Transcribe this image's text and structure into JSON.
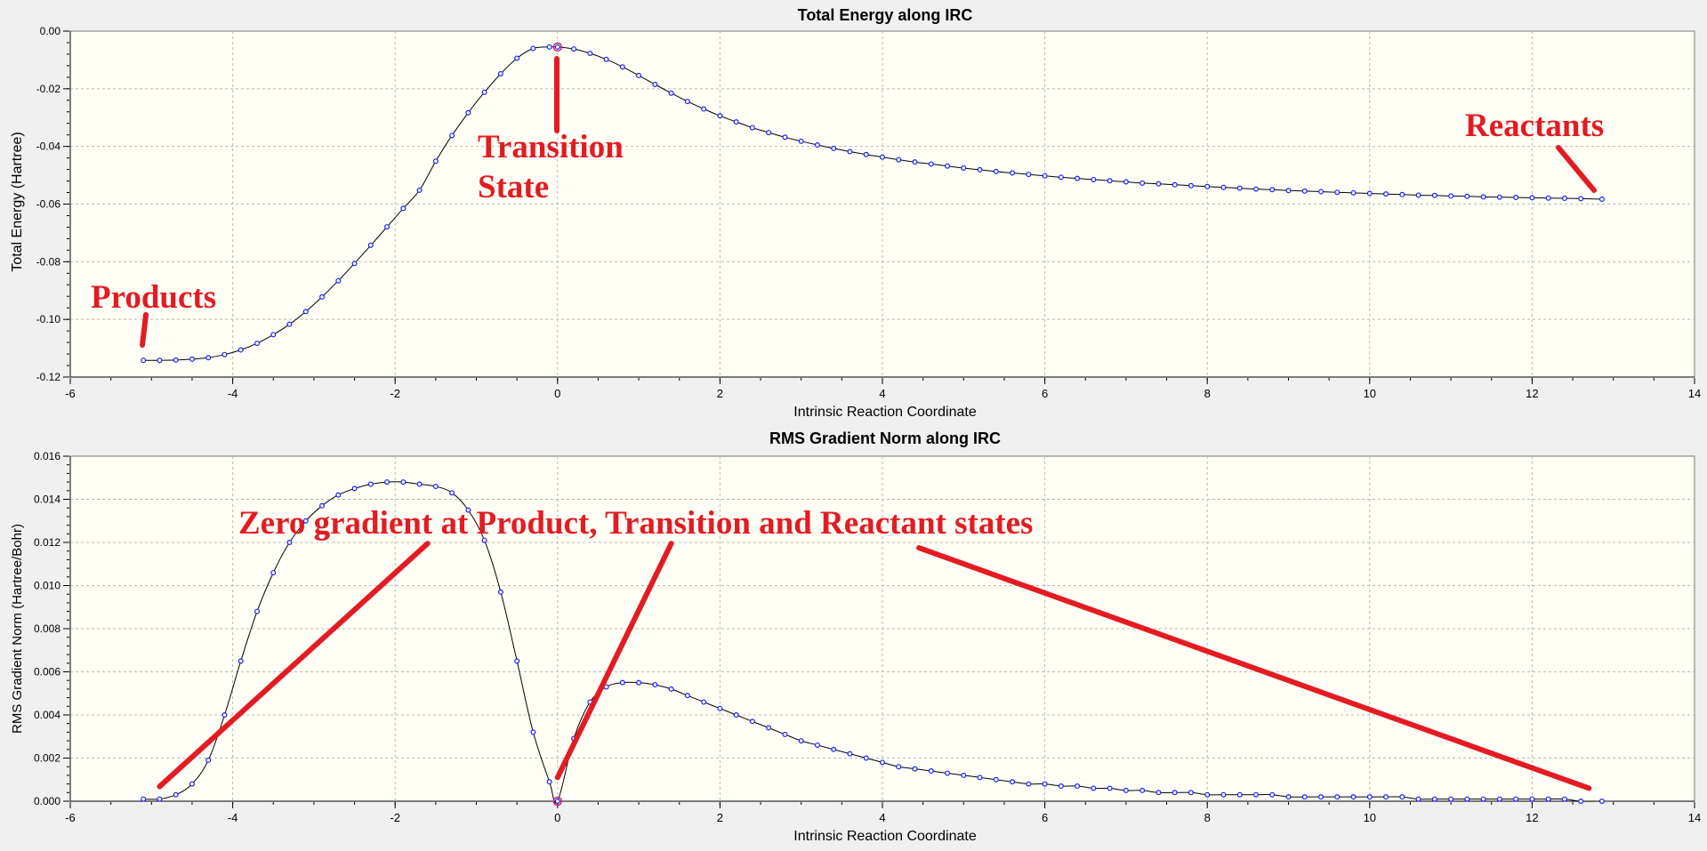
{
  "colors": {
    "plot_bg": "#fffff6",
    "outer_bg": "#f0f0f0",
    "grid": "#b8b8b8",
    "line": "#000000",
    "marker": "#1a1aff",
    "highlight": "#cc2277",
    "annotation": "#e31b23"
  },
  "chart_data": [
    {
      "type": "line",
      "title": "Total Energy along IRC",
      "xlabel": "Intrinsic Reaction Coordinate",
      "ylabel": "Total Energy (Hartree)",
      "xlim": [
        -6,
        14
      ],
      "ylim": [
        -0.12,
        0.0
      ],
      "xticks": [
        "-6",
        "-4",
        "-2",
        "0",
        "2",
        "4",
        "6",
        "8",
        "10",
        "12",
        "14"
      ],
      "yticks": [
        "0.00",
        "-0.02",
        "-0.04",
        "-0.06",
        "-0.08",
        "-0.10",
        "-0.12"
      ],
      "grid": true,
      "series": [
        {
          "x": [
            -5.1,
            -4.9,
            -4.7,
            -4.5,
            -4.3,
            -4.1,
            -3.9,
            -3.7,
            -3.5,
            -3.3,
            -3.1,
            -2.9,
            -2.7,
            -2.5,
            -2.3,
            -2.1,
            -1.9,
            -1.7,
            -1.5,
            -1.3,
            -1.1,
            -0.9,
            -0.7,
            -0.5,
            -0.3,
            -0.1,
            0.0,
            0.2,
            0.4,
            0.6,
            0.8,
            1.0,
            1.2,
            1.4,
            1.6,
            1.8,
            2.0,
            2.2,
            2.4,
            2.6,
            2.8,
            3.0,
            3.2,
            3.4,
            3.6,
            3.8,
            4.0,
            4.2,
            4.4,
            4.6,
            4.8,
            5.0,
            5.2,
            5.4,
            5.6,
            5.8,
            6.0,
            6.2,
            6.4,
            6.6,
            6.8,
            7.0,
            7.2,
            7.4,
            7.6,
            7.8,
            8.0,
            8.2,
            8.4,
            8.6,
            8.8,
            9.0,
            9.2,
            9.4,
            9.6,
            9.8,
            10.0,
            10.2,
            10.4,
            10.6,
            10.8,
            11.0,
            11.2,
            11.4,
            11.6,
            11.8,
            12.0,
            12.2,
            12.4,
            12.6,
            12.86
          ],
          "y": [
            -0.1142,
            -0.1142,
            -0.1141,
            -0.1138,
            -0.1133,
            -0.1122,
            -0.1106,
            -0.1083,
            -0.1053,
            -0.1017,
            -0.0973,
            -0.0922,
            -0.0866,
            -0.0806,
            -0.0743,
            -0.0679,
            -0.0615,
            -0.0552,
            -0.0451,
            -0.0362,
            -0.0283,
            -0.0212,
            -0.0148,
            -0.0094,
            -0.006,
            -0.0055,
            -0.0055,
            -0.0062,
            -0.0077,
            -0.0098,
            -0.0124,
            -0.0154,
            -0.0185,
            -0.0215,
            -0.0244,
            -0.027,
            -0.0294,
            -0.0315,
            -0.0335,
            -0.0352,
            -0.0368,
            -0.0382,
            -0.0395,
            -0.0407,
            -0.0418,
            -0.0428,
            -0.0437,
            -0.0446,
            -0.0454,
            -0.0461,
            -0.0468,
            -0.0475,
            -0.0481,
            -0.0487,
            -0.0492,
            -0.0497,
            -0.0502,
            -0.0507,
            -0.0511,
            -0.0515,
            -0.0519,
            -0.0523,
            -0.0527,
            -0.053,
            -0.0533,
            -0.0536,
            -0.0539,
            -0.0542,
            -0.0545,
            -0.0548,
            -0.055,
            -0.0553,
            -0.0555,
            -0.0557,
            -0.0559,
            -0.0561,
            -0.0563,
            -0.0565,
            -0.0567,
            -0.0569,
            -0.057,
            -0.0572,
            -0.0573,
            -0.0575,
            -0.0576,
            -0.0577,
            -0.0578,
            -0.0579,
            -0.058,
            -0.0581,
            -0.0583
          ]
        }
      ],
      "highlight_x": 0.0,
      "annotations": [
        {
          "text": [
            "Products"
          ],
          "pointer_to": [
            -5.1,
            -0.1125
          ]
        },
        {
          "text": [
            "Transition",
            "State"
          ],
          "pointer_to": [
            0.0,
            -0.0075
          ]
        },
        {
          "text": [
            "Reactants"
          ],
          "pointer_to": [
            12.86,
            -0.0575
          ]
        }
      ]
    },
    {
      "type": "line",
      "title": "RMS Gradient Norm along IRC",
      "xlabel": "Intrinsic Reaction Coordinate",
      "ylabel": "RMS Gradient Norm (Hartree/Bohr)",
      "xlim": [
        -6,
        14
      ],
      "ylim": [
        0.0,
        0.016
      ],
      "xticks": [
        "-6",
        "-4",
        "-2",
        "0",
        "2",
        "4",
        "6",
        "8",
        "10",
        "12",
        "14"
      ],
      "yticks": [
        "0.016",
        "0.014",
        "0.012",
        "0.010",
        "0.008",
        "0.006",
        "0.004",
        "0.002",
        "0.000"
      ],
      "grid": true,
      "series": [
        {
          "x": [
            -5.1,
            -4.9,
            -4.7,
            -4.5,
            -4.3,
            -4.1,
            -3.9,
            -3.7,
            -3.5,
            -3.3,
            -3.1,
            -2.9,
            -2.7,
            -2.5,
            -2.3,
            -2.1,
            -1.9,
            -1.7,
            -1.5,
            -1.3,
            -1.1,
            -0.9,
            -0.7,
            -0.5,
            -0.3,
            -0.1,
            0.0,
            0.2,
            0.4,
            0.6,
            0.8,
            1.0,
            1.2,
            1.4,
            1.6,
            1.8,
            2.0,
            2.2,
            2.4,
            2.6,
            2.8,
            3.0,
            3.2,
            3.4,
            3.6,
            3.8,
            4.0,
            4.2,
            4.4,
            4.6,
            4.8,
            5.0,
            5.2,
            5.4,
            5.6,
            5.8,
            6.0,
            6.2,
            6.4,
            6.6,
            6.8,
            7.0,
            7.2,
            7.4,
            7.6,
            7.8,
            8.0,
            8.2,
            8.4,
            8.6,
            8.8,
            9.0,
            9.2,
            9.4,
            9.6,
            9.8,
            10.0,
            10.2,
            10.4,
            10.6,
            10.8,
            11.0,
            11.2,
            11.4,
            11.6,
            11.8,
            12.0,
            12.2,
            12.4,
            12.6,
            12.86
          ],
          "y": [
            0.0001,
            0.0001,
            0.0003,
            0.0008,
            0.0019,
            0.004,
            0.0065,
            0.0088,
            0.0106,
            0.012,
            0.013,
            0.0137,
            0.0142,
            0.0145,
            0.0147,
            0.0148,
            0.0148,
            0.0147,
            0.0146,
            0.0143,
            0.0135,
            0.0121,
            0.0097,
            0.0065,
            0.0032,
            0.0009,
            0.0,
            0.0029,
            0.0046,
            0.0053,
            0.0055,
            0.0055,
            0.0054,
            0.0052,
            0.0049,
            0.0046,
            0.0043,
            0.004,
            0.0037,
            0.0034,
            0.0031,
            0.0028,
            0.0026,
            0.0024,
            0.0022,
            0.002,
            0.0018,
            0.0016,
            0.0015,
            0.0014,
            0.0013,
            0.0012,
            0.0011,
            0.001,
            0.0009,
            0.0008,
            0.0008,
            0.0007,
            0.0007,
            0.0006,
            0.0006,
            0.0005,
            0.0005,
            0.0004,
            0.0004,
            0.0004,
            0.0003,
            0.0003,
            0.0003,
            0.0003,
            0.0003,
            0.0002,
            0.0002,
            0.0002,
            0.0002,
            0.0002,
            0.0002,
            0.0002,
            0.0002,
            0.0001,
            0.0001,
            0.0001,
            0.0001,
            0.0001,
            0.0001,
            0.0001,
            0.0001,
            0.0001,
            0.0001,
            0.0,
            0.0
          ],
          "extra_marker": [
            -2.9,
            0.0123
          ]
        }
      ],
      "highlight_x": 0.0,
      "annotations": [
        {
          "text": [
            "Zero gradient at Product, Transition and Reactant states"
          ]
        }
      ],
      "pointers": [
        {
          "from": [
            -4.9,
            0.00068
          ],
          "to": [
            -1.6,
            0.01195
          ]
        },
        {
          "from": [
            0.0,
            0.0011
          ],
          "to": [
            1.4,
            0.01195
          ]
        },
        {
          "from": [
            4.45,
            0.01175
          ],
          "to": [
            12.7,
            0.0006
          ]
        }
      ]
    }
  ]
}
